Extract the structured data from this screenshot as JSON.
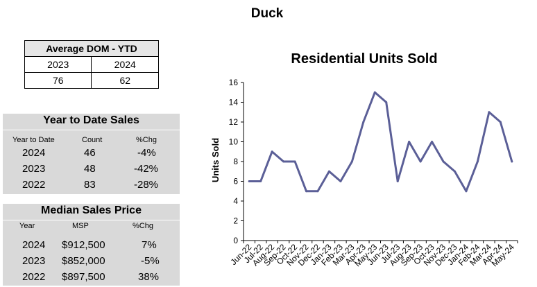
{
  "page_title": "Duck",
  "dom": {
    "title": "Average DOM - YTD",
    "years": [
      "2023",
      "2024"
    ],
    "values": [
      "76",
      "62"
    ]
  },
  "ytd_sales": {
    "title": "Year to Date Sales",
    "headers": [
      "Year to Date",
      "Count",
      "%Chg"
    ],
    "rows": [
      {
        "year": "2024",
        "count": "46",
        "chg": "-4%"
      },
      {
        "year": "2023",
        "count": "48",
        "chg": "-42%"
      },
      {
        "year": "2022",
        "count": "83",
        "chg": "-28%"
      }
    ]
  },
  "median_price": {
    "title": "Median Sales Price",
    "headers": [
      "Year",
      "MSP",
      "%Chg"
    ],
    "rows": [
      {
        "year": "2024",
        "msp": "$912,500",
        "chg": "7%"
      },
      {
        "year": "2023",
        "msp": "$852,000",
        "chg": "-5%"
      },
      {
        "year": "2022",
        "msp": "$897,500",
        "chg": "38%"
      }
    ]
  },
  "chart_data": {
    "type": "line",
    "title": "Residential Units Sold",
    "ylabel": "Units Sold",
    "xlabel": "",
    "ylim": [
      0,
      16
    ],
    "yticks": [
      "0",
      "2",
      "4",
      "6",
      "8",
      "10",
      "12",
      "14",
      "16"
    ],
    "grid": false,
    "line_color": "#5b5f97",
    "categories": [
      "Jun-22",
      "Jul-22",
      "Aug-22",
      "Sep-22",
      "Oct-22",
      "Nov-22",
      "Dec-22",
      "Jan-23",
      "Feb-23",
      "Mar-23",
      "Apr-23",
      "May-23",
      "Jun-23",
      "Jul-23",
      "Aug-23",
      "Sep-23",
      "Oct-23",
      "Nov-23",
      "Dec-23",
      "Jan-24",
      "Feb-24",
      "Mar-24",
      "Apr-24",
      "May-24"
    ],
    "values": [
      6,
      6,
      9,
      8,
      8,
      5,
      5,
      7,
      6,
      8,
      12,
      15,
      14,
      6,
      10,
      8,
      10,
      8,
      7,
      5,
      8,
      13,
      12,
      8
    ]
  }
}
